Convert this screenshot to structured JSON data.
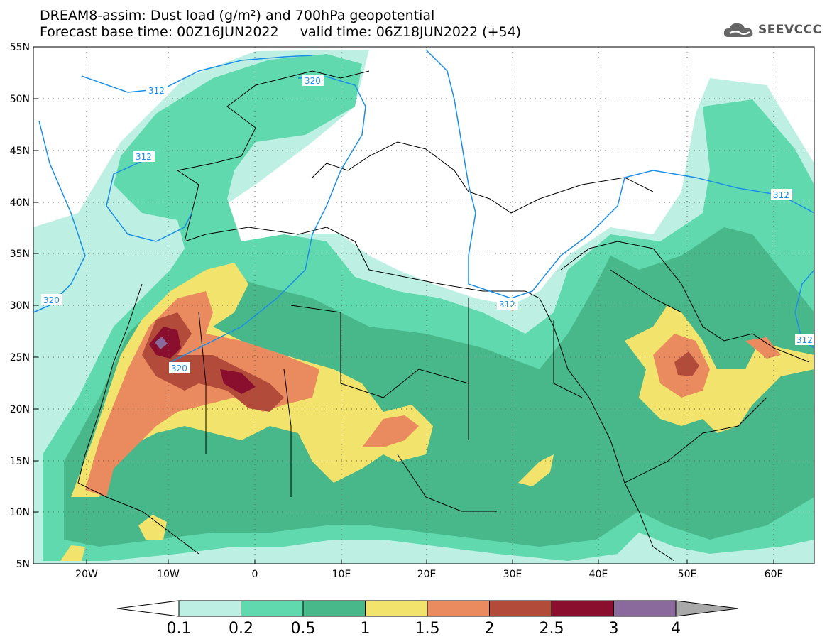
{
  "header": {
    "title_line1": "DREAM8-assim: Dust load (g/m²) and 700hPa geopotential",
    "title_line2": "Forecast base time: 00Z16JUN2022     valid time: 06Z18JUN2022 (+54)"
  },
  "logo": {
    "text": "SEEVCCC",
    "icon": "cloud-icon"
  },
  "map": {
    "lat_labels": [
      "55N",
      "50N",
      "45N",
      "40N",
      "35N",
      "30N",
      "25N",
      "20N",
      "15N",
      "10N",
      "5N"
    ],
    "lon_labels": [
      "20W",
      "10W",
      "0",
      "10E",
      "20E",
      "30E",
      "40E",
      "50E",
      "60E"
    ],
    "contours": [
      {
        "label": "312"
      },
      {
        "label": "320"
      },
      {
        "label": "312"
      },
      {
        "label": "320"
      },
      {
        "label": "320"
      },
      {
        "label": "312"
      },
      {
        "label": "312"
      },
      {
        "label": "312"
      }
    ],
    "dust_levels": [
      {
        "range": "0.1-0.2",
        "color": "#bdf0e3"
      },
      {
        "range": "0.2-0.5",
        "color": "#5fd9ad"
      },
      {
        "range": "0.5-1",
        "color": "#48b88b"
      },
      {
        "range": "1-1.5",
        "color": "#f2e36c"
      },
      {
        "range": "1.5-2",
        "color": "#e98a5f"
      },
      {
        "range": "2-2.5",
        "color": "#b34b3b"
      },
      {
        "range": "2.5-3",
        "color": "#8a0f2f"
      },
      {
        "range": "3-4",
        "color": "#8a6a9c"
      }
    ]
  },
  "colorbar": {
    "labels": [
      "0.1",
      "0.2",
      "0.5",
      "1",
      "1.5",
      "2",
      "2.5",
      "3",
      "4"
    ],
    "colors": [
      "#bdf0e3",
      "#5fd9ad",
      "#48b88b",
      "#f2e36c",
      "#e98a5f",
      "#b34b3b",
      "#8a0f2f",
      "#8a6a9c"
    ],
    "under_color": "#ffffff",
    "over_color": "#a9a9a9"
  }
}
